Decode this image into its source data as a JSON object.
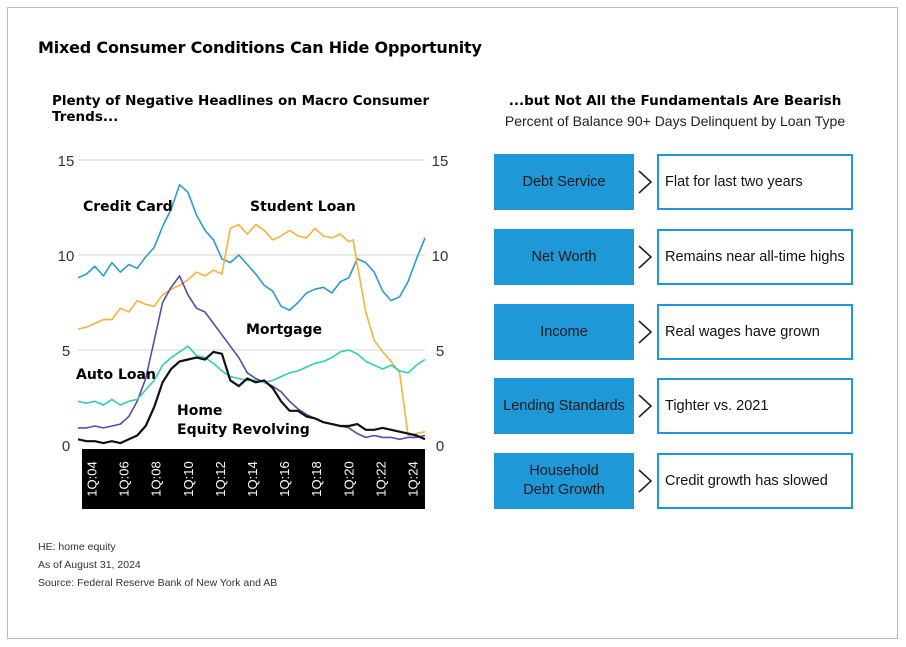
{
  "title": "Mixed Consumer Conditions Can Hide Opportunity",
  "left_title": "Plenty of Negative Headlines on Macro Consumer Trends...",
  "right_title": "...but Not All the Fundamentals Are Bearish",
  "right_subtitle": "Percent of Balance 90+ Days Delinquent by Loan Type",
  "fundamentals": [
    {
      "label": "Debt Service",
      "description": "Flat for last two years"
    },
    {
      "label": "Net Worth",
      "description": "Remains near all-time highs"
    },
    {
      "label": "Income",
      "description": "Real wages have grown"
    },
    {
      "label": "Lending Standards",
      "description": "Tighter vs. 2021"
    },
    {
      "label": "Household Debt Growth",
      "description": "Credit growth has slowed"
    }
  ],
  "footnotes": [
    "HE: home equity",
    "As of August 31, 2024",
    "Source: Federal Reserve Bank of New York and AB"
  ],
  "colors": {
    "accent": "#1e98d7",
    "credit_card": "#2b9ad0",
    "student_loan": "#f2b43b",
    "mortgage": "#5b4aa6",
    "auto_loan": "#2fcfb3",
    "home_equity": "#111111"
  },
  "chart_data": {
    "type": "line",
    "x_tick_labels": [
      "1Q:04",
      "1Q:06",
      "1Q:08",
      "1Q:10",
      "1Q:12",
      "1Q:14",
      "1Q:16",
      "1Q:18",
      "1Q:20",
      "1Q:22",
      "1Q:24"
    ],
    "x_start": 2004.0,
    "x_end": 2024.5,
    "ylim": [
      0,
      15
    ],
    "y_ticks": [
      0,
      5,
      10,
      15
    ],
    "grid": "horizontal",
    "series": [
      {
        "name": "Credit Card",
        "color_key": "credit_card",
        "x": [
          2004.0,
          2004.5,
          2005.0,
          2005.5,
          2006.0,
          2006.5,
          2007.0,
          2007.5,
          2008.0,
          2008.5,
          2009.0,
          2009.5,
          2010.0,
          2010.5,
          2011.0,
          2011.5,
          2012.0,
          2012.5,
          2013.0,
          2013.5,
          2014.0,
          2014.5,
          2015.0,
          2015.5,
          2016.0,
          2016.5,
          2017.0,
          2017.5,
          2018.0,
          2018.5,
          2019.0,
          2019.5,
          2020.0,
          2020.5,
          2021.0,
          2021.5,
          2022.0,
          2022.5,
          2023.0,
          2023.5,
          2024.0,
          2024.5
        ],
        "y": [
          8.8,
          9.0,
          9.4,
          8.9,
          9.6,
          9.1,
          9.5,
          9.3,
          9.9,
          10.4,
          11.5,
          12.4,
          13.7,
          13.3,
          12.1,
          11.3,
          10.8,
          9.8,
          9.6,
          10.0,
          9.5,
          9.0,
          8.4,
          8.1,
          7.3,
          7.1,
          7.5,
          8.0,
          8.2,
          8.3,
          8.0,
          8.6,
          8.8,
          9.8,
          9.6,
          9.1,
          8.1,
          7.6,
          7.8,
          8.6,
          9.8,
          10.9
        ]
      },
      {
        "name": "Student Loan",
        "color_key": "student_loan",
        "x": [
          2004.0,
          2004.5,
          2005.0,
          2005.5,
          2006.0,
          2006.5,
          2007.0,
          2007.5,
          2008.0,
          2008.5,
          2009.0,
          2009.5,
          2010.0,
          2010.5,
          2011.0,
          2011.5,
          2012.0,
          2012.5,
          2013.0,
          2013.5,
          2014.0,
          2014.5,
          2015.0,
          2015.5,
          2016.0,
          2016.5,
          2017.0,
          2017.5,
          2018.0,
          2018.5,
          2019.0,
          2019.5,
          2020.0,
          2020.25,
          2020.5,
          2021.0,
          2021.5,
          2022.0,
          2022.5,
          2023.0,
          2023.5,
          2024.0,
          2024.5
        ],
        "y": [
          6.1,
          6.2,
          6.4,
          6.6,
          6.6,
          7.2,
          7.0,
          7.6,
          7.4,
          7.3,
          7.9,
          8.2,
          8.4,
          8.7,
          9.1,
          8.9,
          9.2,
          9.0,
          11.4,
          11.6,
          11.1,
          11.6,
          11.3,
          10.8,
          11.0,
          11.3,
          11.0,
          10.9,
          11.4,
          11.0,
          10.9,
          11.1,
          10.7,
          10.8,
          9.5,
          7.0,
          5.5,
          4.9,
          4.4,
          3.8,
          0.5,
          0.6,
          0.7
        ]
      },
      {
        "name": "Mortgage",
        "color_key": "mortgage",
        "x": [
          2004.0,
          2004.5,
          2005.0,
          2005.5,
          2006.0,
          2006.5,
          2007.0,
          2007.5,
          2008.0,
          2008.5,
          2009.0,
          2009.5,
          2010.0,
          2010.5,
          2011.0,
          2011.5,
          2012.0,
          2012.5,
          2013.0,
          2013.5,
          2014.0,
          2014.5,
          2015.0,
          2015.5,
          2016.0,
          2016.5,
          2017.0,
          2017.5,
          2018.0,
          2018.5,
          2019.0,
          2019.5,
          2020.0,
          2020.5,
          2021.0,
          2021.5,
          2022.0,
          2022.5,
          2023.0,
          2023.5,
          2024.0,
          2024.5
        ],
        "y": [
          0.9,
          0.9,
          1.0,
          0.9,
          1.0,
          1.1,
          1.5,
          2.3,
          3.5,
          5.5,
          7.5,
          8.3,
          8.9,
          7.9,
          7.2,
          7.0,
          6.4,
          5.8,
          5.2,
          4.6,
          3.8,
          3.5,
          3.3,
          3.1,
          2.8,
          2.3,
          1.9,
          1.6,
          1.4,
          1.2,
          1.1,
          1.0,
          0.9,
          0.6,
          0.4,
          0.5,
          0.4,
          0.4,
          0.3,
          0.4,
          0.4,
          0.5
        ]
      },
      {
        "name": "Auto Loan",
        "color_key": "auto_loan",
        "x": [
          2004.0,
          2004.5,
          2005.0,
          2005.5,
          2006.0,
          2006.5,
          2007.0,
          2007.5,
          2008.0,
          2008.5,
          2009.0,
          2009.5,
          2010.0,
          2010.5,
          2011.0,
          2011.5,
          2012.0,
          2012.5,
          2013.0,
          2013.5,
          2014.0,
          2014.5,
          2015.0,
          2015.5,
          2016.0,
          2016.5,
          2017.0,
          2017.5,
          2018.0,
          2018.5,
          2019.0,
          2019.5,
          2020.0,
          2020.5,
          2021.0,
          2021.5,
          2022.0,
          2022.5,
          2023.0,
          2023.5,
          2024.0,
          2024.5
        ],
        "y": [
          2.3,
          2.2,
          2.3,
          2.1,
          2.4,
          2.1,
          2.3,
          2.4,
          2.9,
          3.4,
          4.2,
          4.6,
          4.9,
          5.2,
          4.7,
          4.6,
          4.3,
          3.9,
          3.6,
          3.5,
          3.4,
          3.4,
          3.3,
          3.4,
          3.6,
          3.8,
          3.9,
          4.1,
          4.3,
          4.4,
          4.6,
          4.9,
          5.0,
          4.8,
          4.4,
          4.2,
          4.0,
          4.2,
          3.9,
          3.8,
          4.2,
          4.5
        ]
      },
      {
        "name": "Home Equity Revolving",
        "color_key": "home_equity",
        "x": [
          2004.0,
          2004.5,
          2005.0,
          2005.5,
          2006.0,
          2006.5,
          2007.0,
          2007.5,
          2008.0,
          2008.5,
          2009.0,
          2009.5,
          2010.0,
          2010.5,
          2011.0,
          2011.5,
          2012.0,
          2012.5,
          2013.0,
          2013.5,
          2014.0,
          2014.5,
          2015.0,
          2015.5,
          2016.0,
          2016.5,
          2017.0,
          2017.5,
          2018.0,
          2018.5,
          2019.0,
          2019.5,
          2020.0,
          2020.5,
          2021.0,
          2021.5,
          2022.0,
          2022.5,
          2023.0,
          2023.5,
          2024.0,
          2024.5
        ],
        "y": [
          0.3,
          0.2,
          0.2,
          0.1,
          0.2,
          0.1,
          0.3,
          0.5,
          1.0,
          2.0,
          3.3,
          4.0,
          4.4,
          4.5,
          4.6,
          4.5,
          4.9,
          4.8,
          3.4,
          3.1,
          3.5,
          3.3,
          3.4,
          3.0,
          2.3,
          1.8,
          1.8,
          1.5,
          1.4,
          1.2,
          1.1,
          1.0,
          1.0,
          1.1,
          0.8,
          0.8,
          0.9,
          0.8,
          0.7,
          0.6,
          0.5,
          0.3
        ]
      }
    ]
  }
}
